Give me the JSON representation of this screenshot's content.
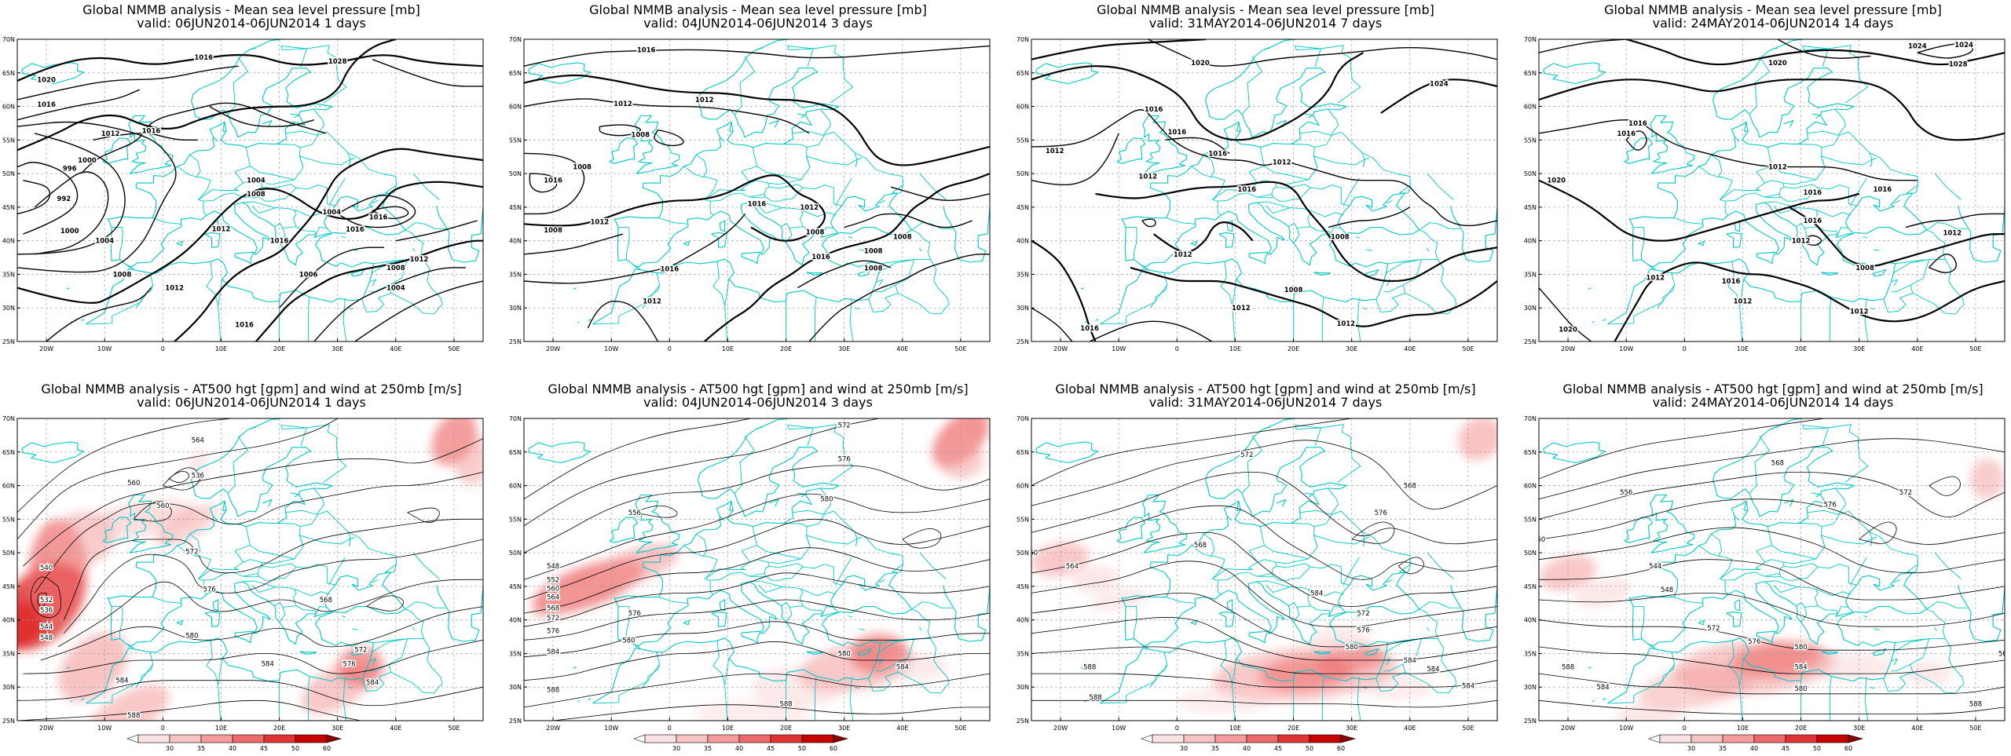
{
  "panels": [
    {
      "row": 0,
      "col": 0,
      "title": "Global NMMB analysis - Mean sea level pressure [mb]",
      "subtitle": "valid: 06JUN2014-06JUN2014   1 days",
      "contour_labels": [
        "1016",
        "1028",
        "1020",
        "1016",
        "1012",
        "1016",
        "1000",
        "996",
        "992",
        "1000",
        "1004",
        "1008",
        "1012",
        "1012",
        "1016",
        "1008",
        "1004",
        "1004",
        "1016",
        "1016",
        "1012",
        "1008",
        "1004",
        "1006",
        "1016"
      ]
    },
    {
      "row": 0,
      "col": 1,
      "title": "Global NMMB analysis - Mean sea level pressure [mb]",
      "subtitle": "valid: 04JUN2014-06JUN2014   3 days",
      "contour_labels": [
        "1016",
        "1012",
        "1012",
        "1008",
        "1008",
        "1016",
        "1008",
        "1012",
        "1016",
        "1012",
        "1016",
        "1016",
        "1008",
        "1008",
        "1008",
        "1008",
        "1012"
      ]
    },
    {
      "row": 0,
      "col": 2,
      "title": "Global NMMB analysis - Mean sea level pressure [mb]",
      "subtitle": "valid: 31MAY2014-06JUN2014   7 days",
      "contour_labels": [
        "1020",
        "1024",
        "1016",
        "1016",
        "1012",
        "1016",
        "1012",
        "1012",
        "1016",
        "1008",
        "1012",
        "1008",
        "1016",
        "1012",
        "1012"
      ]
    },
    {
      "row": 0,
      "col": 3,
      "title": "Global NMMB analysis - Mean sea level pressure [mb]",
      "subtitle": "valid: 24MAY2014-06JUN2014   14 days",
      "contour_labels": [
        "1024",
        "1028",
        "1024",
        "1020",
        "1016",
        "1016",
        "1012",
        "1016",
        "1012",
        "1016",
        "1012",
        "1020",
        "1016",
        "1012",
        "1008",
        "1020",
        "1012",
        "1016",
        "1012"
      ]
    },
    {
      "row": 1,
      "col": 0,
      "title": "Global NMMB analysis - AT500 hgt [gpm] and wind at 250mb [m/s]",
      "subtitle": "valid: 06JUN2014-06JUN2014   1 days",
      "contour_labels": [
        "564",
        "536",
        "560",
        "540",
        "532",
        "536",
        "544",
        "548",
        "560",
        "572",
        "576",
        "580",
        "584",
        "588",
        "584",
        "572",
        "568",
        "576",
        "584"
      ]
    },
    {
      "row": 1,
      "col": 1,
      "title": "Global NMMB analysis - AT500 hgt [gpm] and wind at 250mb [m/s]",
      "subtitle": "valid: 04JUN2014-06JUN2014   3 days",
      "contour_labels": [
        "572",
        "576",
        "580",
        "556",
        "548",
        "552",
        "560",
        "564",
        "568",
        "572",
        "576",
        "580",
        "584",
        "588",
        "580",
        "588",
        "576",
        "584"
      ]
    },
    {
      "row": 1,
      "col": 2,
      "title": "Global NMMB analysis - AT500 hgt [gpm] and wind at 250mb [m/s]",
      "subtitle": "valid: 31MAY2014-06JUN2014   7 days",
      "contour_labels": [
        "568",
        "576",
        "572",
        "560",
        "564",
        "568",
        "584",
        "572",
        "576",
        "580",
        "584",
        "588",
        "584",
        "584",
        "588"
      ]
    },
    {
      "row": 1,
      "col": 3,
      "title": "Global NMMB analysis - AT500 hgt [gpm] and wind at 250mb [m/s]",
      "subtitle": "valid: 24MAY2014-06JUN2014   14 days",
      "contour_labels": [
        "568",
        "572",
        "576",
        "556",
        "560",
        "544",
        "548",
        "572",
        "576",
        "580",
        "584",
        "588",
        "580",
        "584",
        "588",
        "568"
      ]
    }
  ],
  "lat_labels": [
    "70N",
    "65N",
    "60N",
    "55N",
    "50N",
    "45N",
    "40N",
    "35N",
    "30N",
    "25N"
  ],
  "lon_labels": [
    "20W",
    "10W",
    "0",
    "10E",
    "20E",
    "30E",
    "40E",
    "50E"
  ],
  "colorbar": {
    "ticks": [
      "30",
      "35",
      "40",
      "45",
      "50",
      "60"
    ],
    "colors": [
      "#ffffff",
      "#fbe2e2",
      "#f7c3c3",
      "#f49b9b",
      "#ee6a6a",
      "#e03333",
      "#c80000",
      "#8c0000"
    ]
  },
  "colors": {
    "coast": "#00c8c8",
    "contour": "#000000",
    "grid": "#9a9a9a",
    "wind": "#e84a4a"
  }
}
